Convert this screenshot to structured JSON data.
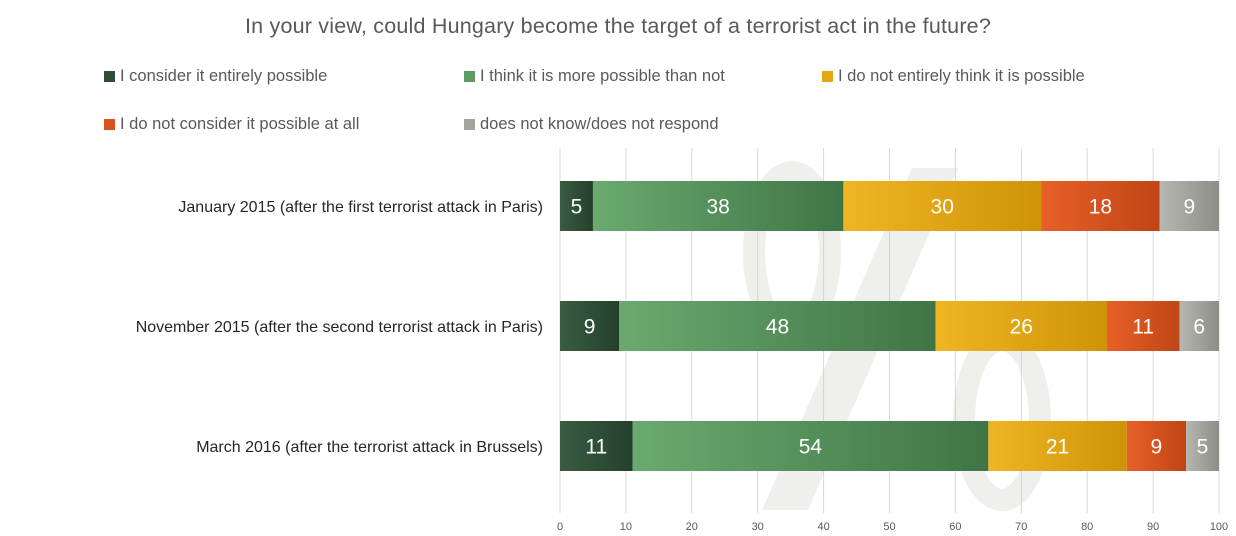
{
  "chart_data": {
    "type": "bar",
    "orientation": "horizontal",
    "stacked": true,
    "title": "In your view, could Hungary become the target of a terrorist act in the future?",
    "categories": [
      "January 2015 (after the first terrorist attack in Paris)",
      "November 2015 (after the second terrorist attack in Paris)",
      "March 2016 (after the terrorist attack in Brussels)"
    ],
    "series": [
      {
        "name": "I consider it entirely possible",
        "values": [
          5,
          9,
          11
        ],
        "color": "#2f4d38"
      },
      {
        "name": "I think it is more possible than not",
        "values": [
          38,
          48,
          54
        ],
        "color": "#5c9c62"
      },
      {
        "name": "I do not entirely think it is possible",
        "values": [
          30,
          26,
          21
        ],
        "color": "#e3a714"
      },
      {
        "name": "I do not consider it possible at all",
        "values": [
          18,
          11,
          9
        ],
        "color": "#d9531e"
      },
      {
        "name": "does not know/does not respond",
        "values": [
          9,
          6,
          5
        ],
        "color": "#a5a5a0"
      }
    ],
    "xlim": [
      0,
      100
    ],
    "xticks": [
      0,
      10,
      20,
      30,
      40,
      50,
      60,
      70,
      80,
      90,
      100
    ],
    "grid": true,
    "legend_position": "top",
    "watermark": "%"
  }
}
